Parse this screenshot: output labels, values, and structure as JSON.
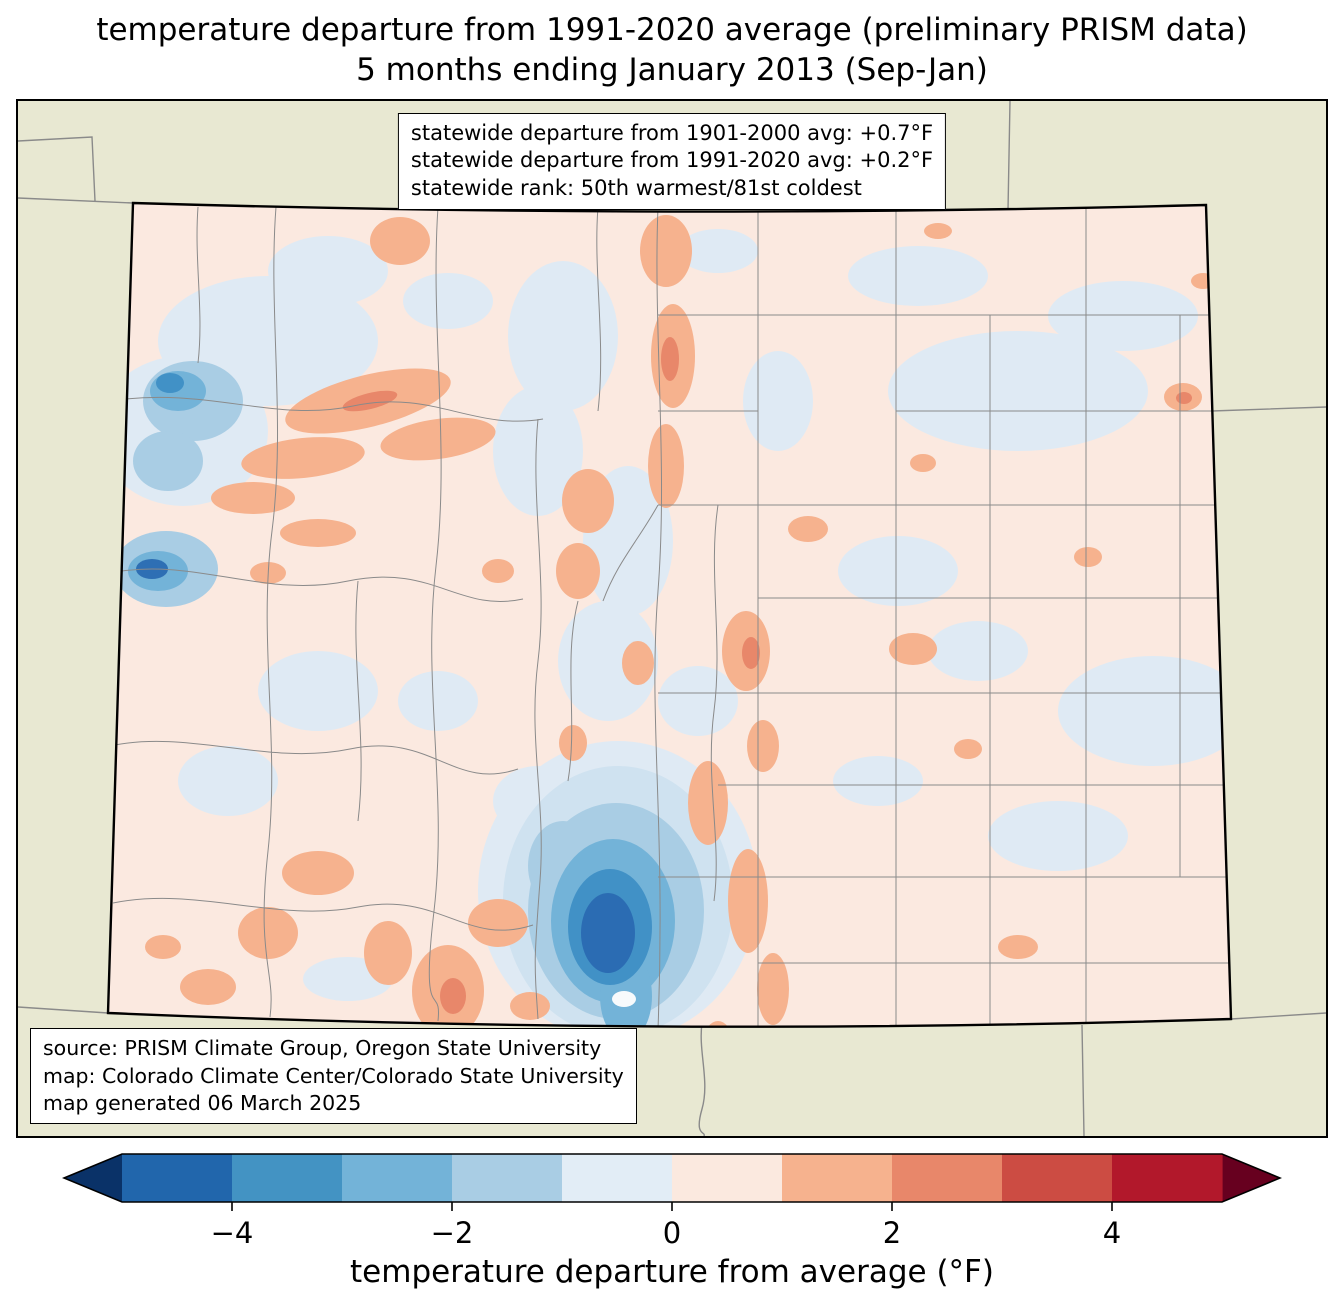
{
  "title": {
    "line1": "temperature departure from 1991-2020 average (preliminary PRISM data)",
    "line2": "5 months ending January 2013 (Sep-Jan)"
  },
  "stats_box": {
    "lines": [
      "statewide departure from 1901-2000 avg: +0.7°F",
      "statewide departure from 1991-2020 avg: +0.2°F",
      "statewide rank: 50th warmest/81st coldest"
    ]
  },
  "source_box": {
    "lines": [
      "source: PRISM Climate Group, Oregon State University",
      "map: Colorado Climate Center/Colorado State University",
      "map generated 06 March 2025"
    ]
  },
  "map": {
    "region_label": "Colorado",
    "background_color": "#e8e8d2",
    "state_fill_color": "#fbe9e0",
    "county_line_color": "#8a8a8a",
    "state_border_color": "#000000"
  },
  "colorbar": {
    "label": "temperature departure from average (°F)",
    "units": "°F",
    "range": [
      -5,
      5
    ],
    "ticks": [
      {
        "value": -4,
        "label": "−4"
      },
      {
        "value": -2,
        "label": "−2"
      },
      {
        "value": 0,
        "label": "0"
      },
      {
        "value": 2,
        "label": "2"
      },
      {
        "value": 4,
        "label": "4"
      }
    ],
    "segment_colors": [
      "#2166ac",
      "#4393c3",
      "#73b3d8",
      "#a9cde4",
      "#e2edf6",
      "#fbe9df",
      "#f6b28e",
      "#e8876a",
      "#cc4c43",
      "#b2182b"
    ],
    "under_color": "#0a3268",
    "over_color": "#67001f"
  }
}
